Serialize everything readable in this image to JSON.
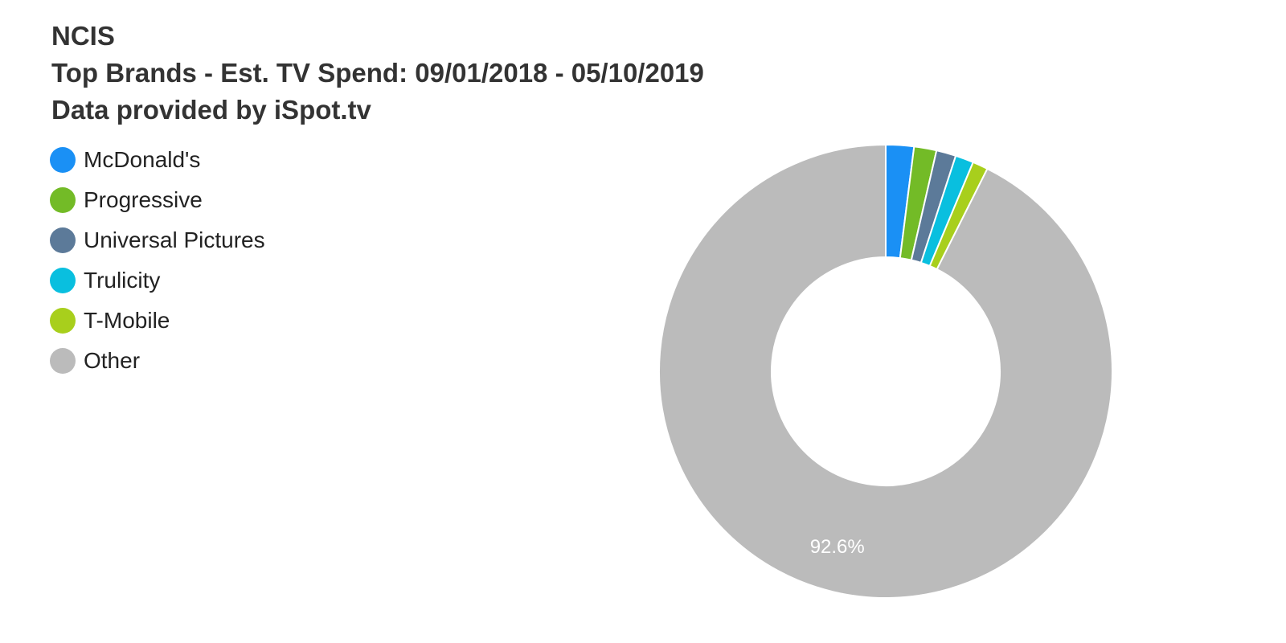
{
  "chart_data": {
    "type": "pie",
    "donut": true,
    "title": "NCIS",
    "subtitle": "Top Brands - Est. TV Spend: 09/01/2018 - 05/10/2019",
    "caption": "Data provided by iSpot.tv",
    "legend_position": "top-left",
    "categories": [
      "McDonald's",
      "Progressive",
      "Universal Pictures",
      "Trulicity",
      "T-Mobile",
      "Other"
    ],
    "values": [
      2.0,
      1.6,
      1.4,
      1.3,
      1.1,
      92.6
    ],
    "colors": [
      "#1a90f5",
      "#73bb27",
      "#5c7a99",
      "#09bfdf",
      "#a8cf1c",
      "#bbbbbb"
    ],
    "data_labels": [
      {
        "category": "Other",
        "text": "92.6%"
      }
    ]
  }
}
